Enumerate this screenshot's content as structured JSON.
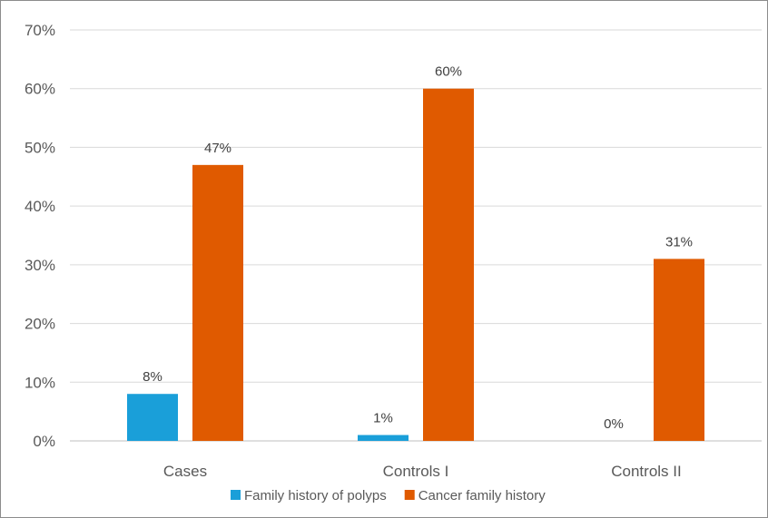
{
  "chart_data": {
    "type": "bar",
    "categories": [
      "Cases",
      "Controls I",
      "Controls II"
    ],
    "series": [
      {
        "name": "Family history of polyps",
        "color": "#1a9fd9",
        "values": [
          8,
          1,
          0
        ],
        "labels": [
          "8%",
          "1%",
          "0%"
        ]
      },
      {
        "name": "Cancer family history",
        "color": "#e05a00",
        "values": [
          47,
          60,
          31
        ],
        "labels": [
          "47%",
          "60%",
          "31%"
        ]
      }
    ],
    "yticks": [
      "0%",
      "10%",
      "20%",
      "30%",
      "40%",
      "50%",
      "60%",
      "70%"
    ],
    "ylim": [
      0,
      70
    ],
    "grid": true,
    "legend": "bottom"
  }
}
